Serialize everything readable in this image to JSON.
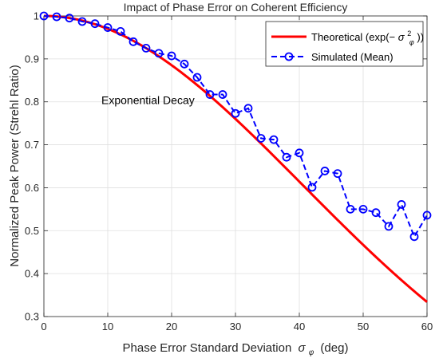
{
  "chart_data": {
    "type": "line",
    "title": "Impact of Phase Error on Coherent Efficiency",
    "xlabel": "Phase Error Standard Deviation",
    "xlabel_symbol": "σ",
    "xlabel_subscript": "φ",
    "xlabel_unit": "(deg)",
    "ylabel": "Normalized Peak Power (Strehl Ratio)",
    "xlim": [
      0,
      60
    ],
    "ylim": [
      0.3,
      1.0
    ],
    "xticks": [
      0,
      10,
      20,
      30,
      40,
      50,
      60
    ],
    "yticks": [
      0.3,
      0.4,
      0.5,
      0.6,
      0.7,
      0.8,
      0.9,
      1.0
    ],
    "ytick_labels": [
      "0.3",
      "0.4",
      "0.5",
      "0.6",
      "0.7",
      "0.8",
      "0.9",
      "1"
    ],
    "grid": true,
    "legend_position": "top-right",
    "annotation": {
      "text": "Exponential Decay",
      "x": 9,
      "y": 0.795
    },
    "series": [
      {
        "name": "Theoretical (exp(−σ²φ))",
        "legend_prefix": "Theoretical (exp(−",
        "legend_sym": "σ",
        "legend_sup": "2",
        "legend_sub": "φ",
        "legend_suffix": "))",
        "style": "solid",
        "color": "#ff0000",
        "formula": "exp(-(x*pi/180)^2)"
      },
      {
        "name": "Simulated (Mean)",
        "style": "dashed-circle",
        "color": "#0000ff",
        "x": [
          0,
          2,
          4,
          6,
          8,
          10,
          12,
          14,
          16,
          18,
          20,
          22,
          24,
          26,
          28,
          30,
          32,
          34,
          36,
          38,
          40,
          42,
          44,
          46,
          48,
          50,
          52,
          54,
          56,
          58,
          60
        ],
        "y": [
          1.0,
          0.998,
          0.995,
          0.987,
          0.982,
          0.973,
          0.964,
          0.94,
          0.925,
          0.913,
          0.907,
          0.888,
          0.857,
          0.817,
          0.817,
          0.773,
          0.785,
          0.715,
          0.712,
          0.671,
          0.681,
          0.601,
          0.639,
          0.633,
          0.55,
          0.55,
          0.542,
          0.51,
          0.561,
          0.486,
          0.536
        ]
      }
    ]
  }
}
